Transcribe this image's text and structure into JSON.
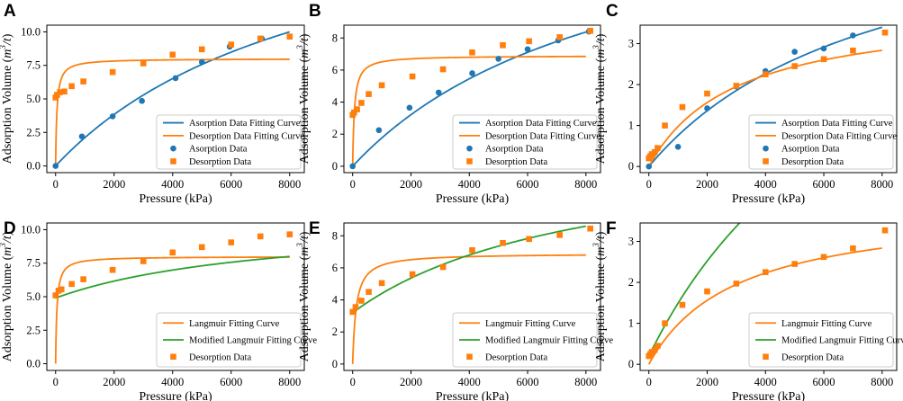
{
  "figure": {
    "xlabel": "Pressure (kPa)",
    "ylabel": "Adsorption Volume (m³/t)",
    "ylabel_main": "Adsorption Volume (",
    "ylabel_m": "m",
    "ylabel_sup": "3",
    "ylabel_t": "/t",
    "ylabel_close": ")"
  },
  "colors": {
    "blue": "#1f77b4",
    "orange": "#ff7f0e",
    "green": "#2ca02c"
  },
  "chart_data": [
    {
      "panel": "A",
      "type": "scatter",
      "xlim": [
        -300,
        8500
      ],
      "ylim": [
        -0.5,
        10.5
      ],
      "xticks": [
        0,
        2000,
        4000,
        6000,
        8000
      ],
      "yticks": [
        0.0,
        2.5,
        5.0,
        7.5,
        10.0
      ],
      "ytick_labels": [
        "0.0",
        "2.5",
        "5.0",
        "7.5",
        "10.0"
      ],
      "series": [
        {
          "name": "Asorption Data Fitting Curve",
          "kind": "line",
          "color": "blue",
          "model": "langmuir",
          "VL": 21.5,
          "PL": 9200
        },
        {
          "name": "Desorption Data Fitting Curve",
          "kind": "line",
          "color": "orange",
          "model": "langmuir",
          "VL": 8.0,
          "PL": 45
        },
        {
          "name": "Asorption Data",
          "kind": "circle",
          "color": "blue",
          "x": [
            0,
            900,
            1950,
            2950,
            4100,
            5000,
            5950,
            7050,
            8000
          ],
          "y": [
            0.0,
            2.2,
            3.7,
            4.85,
            6.55,
            7.75,
            8.9,
            9.5,
            9.65
          ]
        },
        {
          "name": "Desorption Data",
          "kind": "square",
          "color": "orange",
          "x": [
            0,
            50,
            150,
            300,
            550,
            950,
            1950,
            3000,
            4000,
            5000,
            6000,
            7000,
            8000
          ],
          "y": [
            5.1,
            5.3,
            5.5,
            5.55,
            5.95,
            6.3,
            7.0,
            7.65,
            8.3,
            8.7,
            9.05,
            9.5,
            9.65
          ]
        }
      ]
    },
    {
      "panel": "B",
      "type": "scatter",
      "xlim": [
        -300,
        8500
      ],
      "ylim": [
        -0.4,
        8.8
      ],
      "xticks": [
        0,
        2000,
        4000,
        6000,
        8000
      ],
      "yticks": [
        0,
        2,
        4,
        6,
        8
      ],
      "ytick_labels": [
        "0",
        "2",
        "4",
        "6",
        "8"
      ],
      "series": [
        {
          "name": "Asorption Data Fitting Curve",
          "kind": "line",
          "color": "blue",
          "model": "langmuir",
          "VL": 18.0,
          "PL": 9200
        },
        {
          "name": "Desorption Data Fitting Curve",
          "kind": "line",
          "color": "orange",
          "model": "langmuir",
          "VL": 6.9,
          "PL": 60
        },
        {
          "name": "Asorption Data",
          "kind": "circle",
          "color": "blue",
          "x": [
            0,
            900,
            1950,
            2950,
            4100,
            5000,
            6000,
            7050,
            8100
          ],
          "y": [
            0.0,
            2.25,
            3.65,
            4.6,
            5.8,
            6.7,
            7.3,
            7.85,
            8.4
          ]
        },
        {
          "name": "Desorption Data",
          "kind": "square",
          "color": "orange",
          "x": [
            0,
            50,
            150,
            300,
            550,
            1000,
            2050,
            3100,
            4100,
            5150,
            6050,
            7100,
            8150
          ],
          "y": [
            3.2,
            3.35,
            3.55,
            3.95,
            4.5,
            5.05,
            5.6,
            6.05,
            7.1,
            7.55,
            7.8,
            8.05,
            8.45
          ]
        }
      ]
    },
    {
      "panel": "C",
      "type": "scatter",
      "xlim": [
        -300,
        8500
      ],
      "ylim": [
        -0.15,
        3.45
      ],
      "xticks": [
        0,
        2000,
        4000,
        6000,
        8000
      ],
      "yticks": [
        0,
        1,
        2,
        3
      ],
      "ytick_labels": [
        "0",
        "1",
        "2",
        "3"
      ],
      "series": [
        {
          "name": "Asorption Data Fitting Curve",
          "kind": "line",
          "color": "blue",
          "model": "langmuir",
          "VL": 6.8,
          "PL": 8000
        },
        {
          "name": "Desorption Data Fitting Curve",
          "kind": "line",
          "color": "orange",
          "model": "langmuir",
          "VL": 3.9,
          "PL": 3000
        },
        {
          "name": "Asorption Data",
          "kind": "circle",
          "color": "blue",
          "x": [
            0,
            1000,
            2000,
            3000,
            4000,
            5000,
            6000,
            7000
          ],
          "y": [
            0.0,
            0.48,
            1.42,
            1.95,
            2.33,
            2.8,
            2.88,
            3.2
          ]
        },
        {
          "name": "Desorption Data",
          "kind": "square",
          "color": "orange",
          "x": [
            0,
            50,
            100,
            200,
            300,
            550,
            1150,
            2000,
            3000,
            4000,
            5000,
            6000,
            7000,
            8100
          ],
          "y": [
            0.2,
            0.25,
            0.3,
            0.35,
            0.45,
            1.0,
            1.45,
            1.78,
            1.97,
            2.25,
            2.45,
            2.62,
            2.83,
            3.27
          ]
        }
      ]
    },
    {
      "panel": "D",
      "type": "scatter",
      "xlim": [
        -300,
        8500
      ],
      "ylim": [
        -0.5,
        10.5
      ],
      "xticks": [
        0,
        2000,
        4000,
        6000,
        8000
      ],
      "yticks": [
        0.0,
        2.5,
        5.0,
        7.5,
        10.0
      ],
      "ytick_labels": [
        "0.0",
        "2.5",
        "5.0",
        "7.5",
        "10.0"
      ],
      "series": [
        {
          "name": "Langmuir Fitting Curve",
          "kind": "line",
          "color": "orange",
          "model": "langmuir",
          "VL": 8.0,
          "PL": 45
        },
        {
          "name": "Modified Langmuir Fitting Curve",
          "kind": "line",
          "color": "green",
          "model": "modified",
          "V0": 4.9,
          "Vb": 8.0,
          "PL": 7500
        },
        {
          "name": "Desorption Data",
          "kind": "square",
          "color": "orange",
          "x": [
            0,
            100,
            200,
            550,
            950,
            1950,
            3000,
            4000,
            5000,
            6000,
            7000,
            8000
          ],
          "y": [
            5.1,
            5.45,
            5.55,
            5.95,
            6.3,
            7.0,
            7.65,
            8.3,
            8.7,
            9.05,
            9.5,
            9.65
          ]
        }
      ]
    },
    {
      "panel": "E",
      "type": "scatter",
      "xlim": [
        -300,
        8500
      ],
      "ylim": [
        -0.4,
        8.8
      ],
      "xticks": [
        0,
        2000,
        4000,
        6000,
        8000
      ],
      "yticks": [
        0,
        2,
        4,
        6,
        8
      ],
      "ytick_labels": [
        "0",
        "2",
        "4",
        "6",
        "8"
      ],
      "series": [
        {
          "name": "Langmuir Fitting Curve",
          "kind": "line",
          "color": "orange",
          "model": "langmuir",
          "VL": 6.9,
          "PL": 120
        },
        {
          "name": "Modified Langmuir Fitting Curve",
          "kind": "line",
          "color": "green",
          "model": "modified",
          "V0": 3.2,
          "Vb": 8.6,
          "PL": 8000
        },
        {
          "name": "Desorption Data",
          "kind": "square",
          "color": "orange",
          "x": [
            0,
            100,
            300,
            550,
            1000,
            2050,
            3100,
            4100,
            5150,
            6050,
            7100,
            8150
          ],
          "y": [
            3.25,
            3.55,
            3.95,
            4.5,
            5.05,
            5.6,
            6.05,
            7.1,
            7.55,
            7.8,
            8.05,
            8.45
          ]
        }
      ]
    },
    {
      "panel": "F",
      "type": "scatter",
      "xlim": [
        -300,
        8500
      ],
      "ylim": [
        -0.15,
        3.45
      ],
      "xticks": [
        0,
        2000,
        4000,
        6000,
        8000
      ],
      "yticks": [
        0,
        1,
        2,
        3
      ],
      "ytick_labels": [
        "0",
        "1",
        "2",
        "3"
      ],
      "series": [
        {
          "name": "Langmuir Fitting Curve",
          "kind": "line",
          "color": "orange",
          "model": "langmuir",
          "VL": 3.9,
          "PL": 3000
        },
        {
          "name": "Modified Langmuir Fitting Curve",
          "kind": "line",
          "color": "green",
          "model": "modified",
          "V0": 0.2,
          "Vb": 6.0,
          "PL": 8000
        },
        {
          "name": "Desorption Data",
          "kind": "square",
          "color": "orange",
          "x": [
            0,
            50,
            100,
            200,
            300,
            550,
            1150,
            2000,
            3000,
            4000,
            5000,
            6000,
            7000,
            8100
          ],
          "y": [
            0.2,
            0.25,
            0.3,
            0.35,
            0.45,
            1.0,
            1.45,
            1.78,
            1.97,
            2.25,
            2.45,
            2.62,
            2.83,
            3.27
          ]
        }
      ]
    }
  ]
}
